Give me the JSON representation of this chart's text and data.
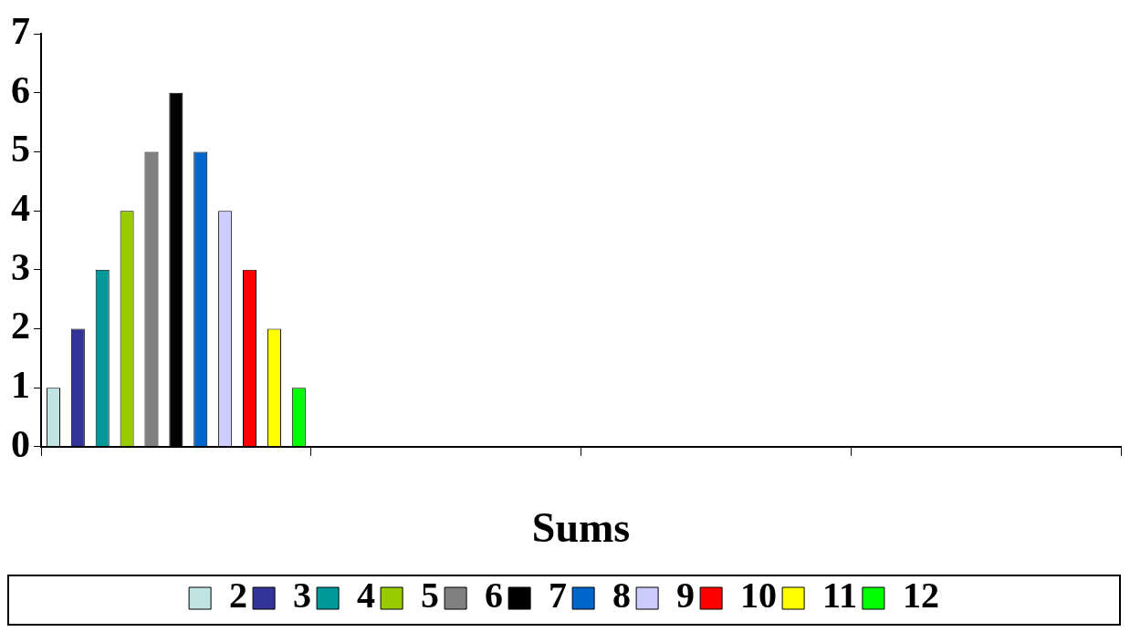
{
  "chart_data": {
    "type": "bar",
    "xlabel": "Sums",
    "categories": [
      null,
      null,
      null,
      null
    ],
    "series": [
      {
        "name": "2",
        "color": "#c0e4e4",
        "values": [
          1,
          null,
          null,
          null
        ]
      },
      {
        "name": "3",
        "color": "#333399",
        "values": [
          2,
          null,
          null,
          null
        ]
      },
      {
        "name": "4",
        "color": "#009999",
        "values": [
          3,
          null,
          null,
          null
        ]
      },
      {
        "name": "5",
        "color": "#99cc00",
        "values": [
          4,
          null,
          null,
          null
        ]
      },
      {
        "name": "6",
        "color": "#808080",
        "values": [
          5,
          null,
          null,
          null
        ]
      },
      {
        "name": "7",
        "color": "#000000",
        "values": [
          6,
          null,
          null,
          null
        ]
      },
      {
        "name": "8",
        "color": "#0066cc",
        "values": [
          5,
          null,
          null,
          null
        ]
      },
      {
        "name": "9",
        "color": "#ccccff",
        "values": [
          4,
          null,
          null,
          null
        ]
      },
      {
        "name": "10",
        "color": "#ff0000",
        "values": [
          3,
          null,
          null,
          null
        ]
      },
      {
        "name": "11",
        "color": "#ffff00",
        "values": [
          2,
          null,
          null,
          null
        ]
      },
      {
        "name": "12",
        "color": "#00ff00",
        "values": [
          1,
          null,
          null,
          null
        ]
      }
    ],
    "ylim": [
      0,
      7
    ],
    "yticks": [
      0,
      1,
      2,
      3,
      4,
      5,
      6,
      7
    ],
    "grid": false,
    "legend": "bottom",
    "tick_labels": "y"
  }
}
